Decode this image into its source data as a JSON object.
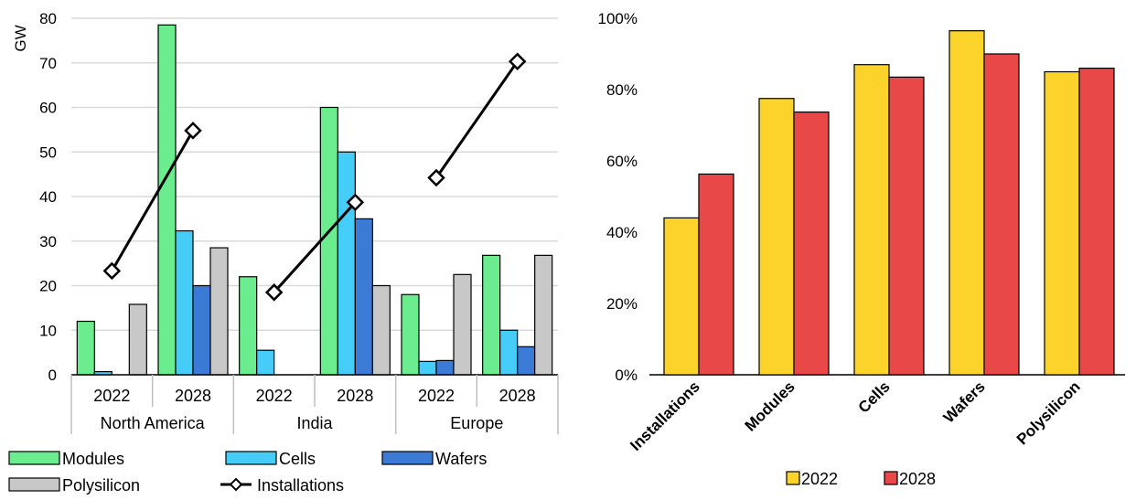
{
  "chart_data": [
    {
      "type": "bar",
      "subtype": "grouped-bar-with-line",
      "ylabel": "GW",
      "ylim": [
        0,
        80
      ],
      "yticks": [
        0,
        10,
        20,
        30,
        40,
        50,
        60,
        70,
        80
      ],
      "grid": true,
      "legend_position": "bottom",
      "groups": [
        {
          "name": "North America",
          "years": [
            "2022",
            "2028"
          ]
        },
        {
          "name": "India",
          "years": [
            "2022",
            "2028"
          ]
        },
        {
          "name": "Europe",
          "years": [
            "2022",
            "2028"
          ]
        }
      ],
      "categories": [
        "North America 2022",
        "North America 2028",
        "India 2022",
        "India 2028",
        "Europe 2022",
        "Europe 2028"
      ],
      "series": [
        {
          "name": "Modules",
          "kind": "bar",
          "color": "#6bed8f",
          "values": [
            12,
            78.5,
            22,
            60,
            18,
            26.8
          ]
        },
        {
          "name": "Cells",
          "kind": "bar",
          "color": "#45cdf7",
          "values": [
            0.7,
            32.3,
            5.5,
            50,
            3,
            10
          ]
        },
        {
          "name": "Wafers",
          "kind": "bar",
          "color": "#3b7bd6",
          "values": [
            0,
            20,
            0,
            35,
            3.2,
            6.3
          ]
        },
        {
          "name": "Polysilicon",
          "kind": "bar",
          "color": "#c8c8c8",
          "values": [
            15.8,
            28.5,
            0,
            20,
            22.5,
            26.8
          ]
        },
        {
          "name": "Installations",
          "kind": "line",
          "color": "#000000",
          "values": [
            23.3,
            54.8,
            18.5,
            38.7,
            44.2,
            70.3
          ]
        }
      ]
    },
    {
      "type": "bar",
      "subtype": "grouped-bar",
      "ylim": [
        0,
        1
      ],
      "yticks": [
        "0%",
        "20%",
        "40%",
        "60%",
        "80%",
        "100%"
      ],
      "grid": false,
      "legend_position": "bottom",
      "categories": [
        "Installations",
        "Modules",
        "Cells",
        "Wafers",
        "Polysilicon"
      ],
      "series": [
        {
          "name": "2022",
          "color": "#fcd32a",
          "values": [
            0.44,
            0.775,
            0.87,
            0.965,
            0.85
          ]
        },
        {
          "name": "2028",
          "color": "#e84848",
          "values": [
            0.563,
            0.737,
            0.835,
            0.9,
            0.86
          ]
        }
      ]
    }
  ]
}
